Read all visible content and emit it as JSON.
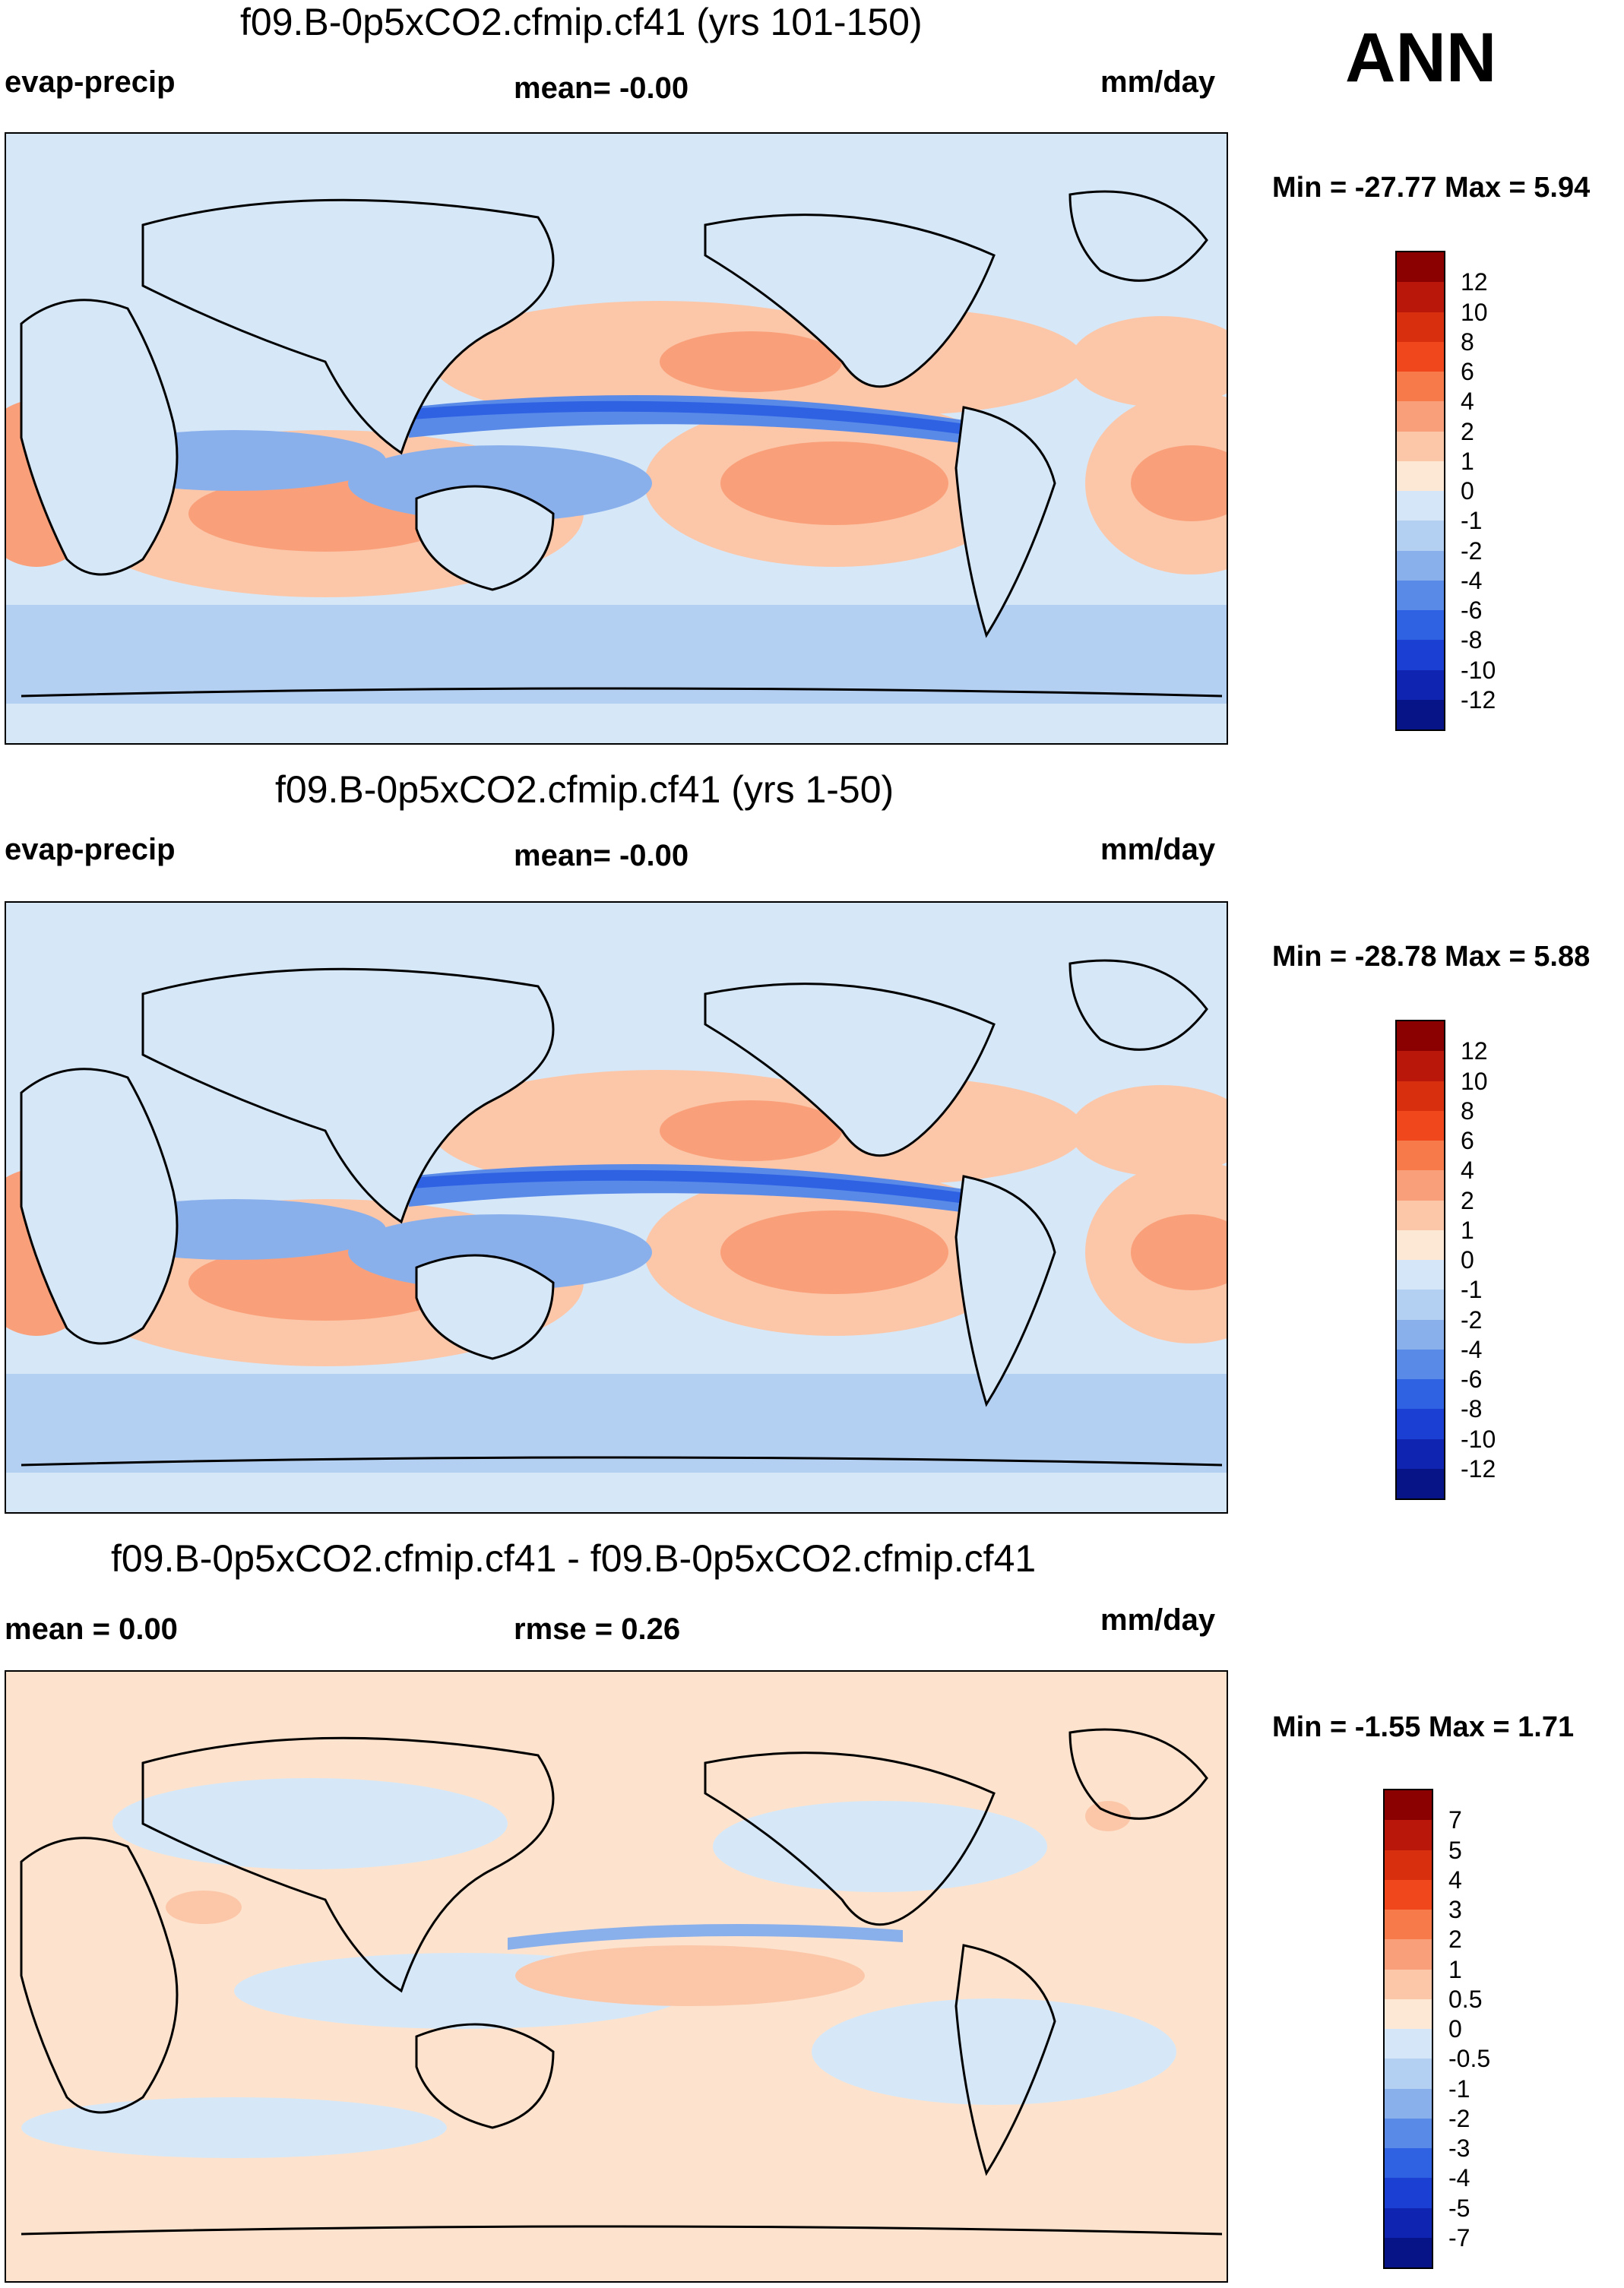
{
  "season_label": "ANN",
  "colors": {
    "ocean_base_top": "#d6e8f8",
    "ocean_base_bottom": "#fde3cd"
  },
  "panels": [
    {
      "title": "f09.B-0p5xCO2.cfmip.cf41 (yrs 101-150)",
      "left_label": "evap-precip",
      "center_label": "mean=  -0.00",
      "right_label": "mm/day",
      "minmax": "Min = -27.77 Max =   5.94",
      "colorbar_colors": [
        "#8b0000",
        "#b8170a",
        "#d8300e",
        "#f0481c",
        "#f77a4a",
        "#f9a07a",
        "#fcc7a9",
        "#fde8d6",
        "#d4e6f8",
        "#b3cff2",
        "#8ab0ec",
        "#5a8ae8",
        "#2e62e3",
        "#1a3fd2",
        "#0f24b0",
        "#061488"
      ],
      "colorbar_ticks": [
        "12",
        "10",
        "8",
        "6",
        "4",
        "2",
        "1",
        "0",
        "-1",
        "-2",
        "-4",
        "-6",
        "-8",
        "-10",
        "-12"
      ]
    },
    {
      "title": "f09.B-0p5xCO2.cfmip.cf41 (yrs 1-50)",
      "left_label": "evap-precip",
      "center_label": "mean=  -0.00",
      "right_label": "mm/day",
      "minmax": "Min = -28.78 Max =   5.88",
      "colorbar_colors": [
        "#8b0000",
        "#b8170a",
        "#d8300e",
        "#f0481c",
        "#f77a4a",
        "#f9a07a",
        "#fcc7a9",
        "#fde8d6",
        "#d4e6f8",
        "#b3cff2",
        "#8ab0ec",
        "#5a8ae8",
        "#2e62e3",
        "#1a3fd2",
        "#0f24b0",
        "#061488"
      ],
      "colorbar_ticks": [
        "12",
        "10",
        "8",
        "6",
        "4",
        "2",
        "1",
        "0",
        "-1",
        "-2",
        "-4",
        "-6",
        "-8",
        "-10",
        "-12"
      ]
    },
    {
      "title": "f09.B-0p5xCO2.cfmip.cf41 - f09.B-0p5xCO2.cfmip.cf41",
      "left_label": "mean =    0.00",
      "center_label": "rmse =    0.26",
      "right_label": "mm/day",
      "minmax": "Min =  -1.55 Max =   1.71",
      "colorbar_colors": [
        "#8b0000",
        "#b8170a",
        "#d8300e",
        "#f0481c",
        "#f77a4a",
        "#f9a07a",
        "#fcc7a9",
        "#fde8d6",
        "#d4e6f8",
        "#b3cff2",
        "#8ab0ec",
        "#5a8ae8",
        "#2e62e3",
        "#1a3fd2",
        "#0f24b0",
        "#061488"
      ],
      "colorbar_ticks": [
        "7",
        "5",
        "4",
        "3",
        "2",
        "1",
        "0.5",
        "0",
        "-0.5",
        "-1",
        "-2",
        "-3",
        "-4",
        "-5",
        "-7"
      ]
    }
  ]
}
